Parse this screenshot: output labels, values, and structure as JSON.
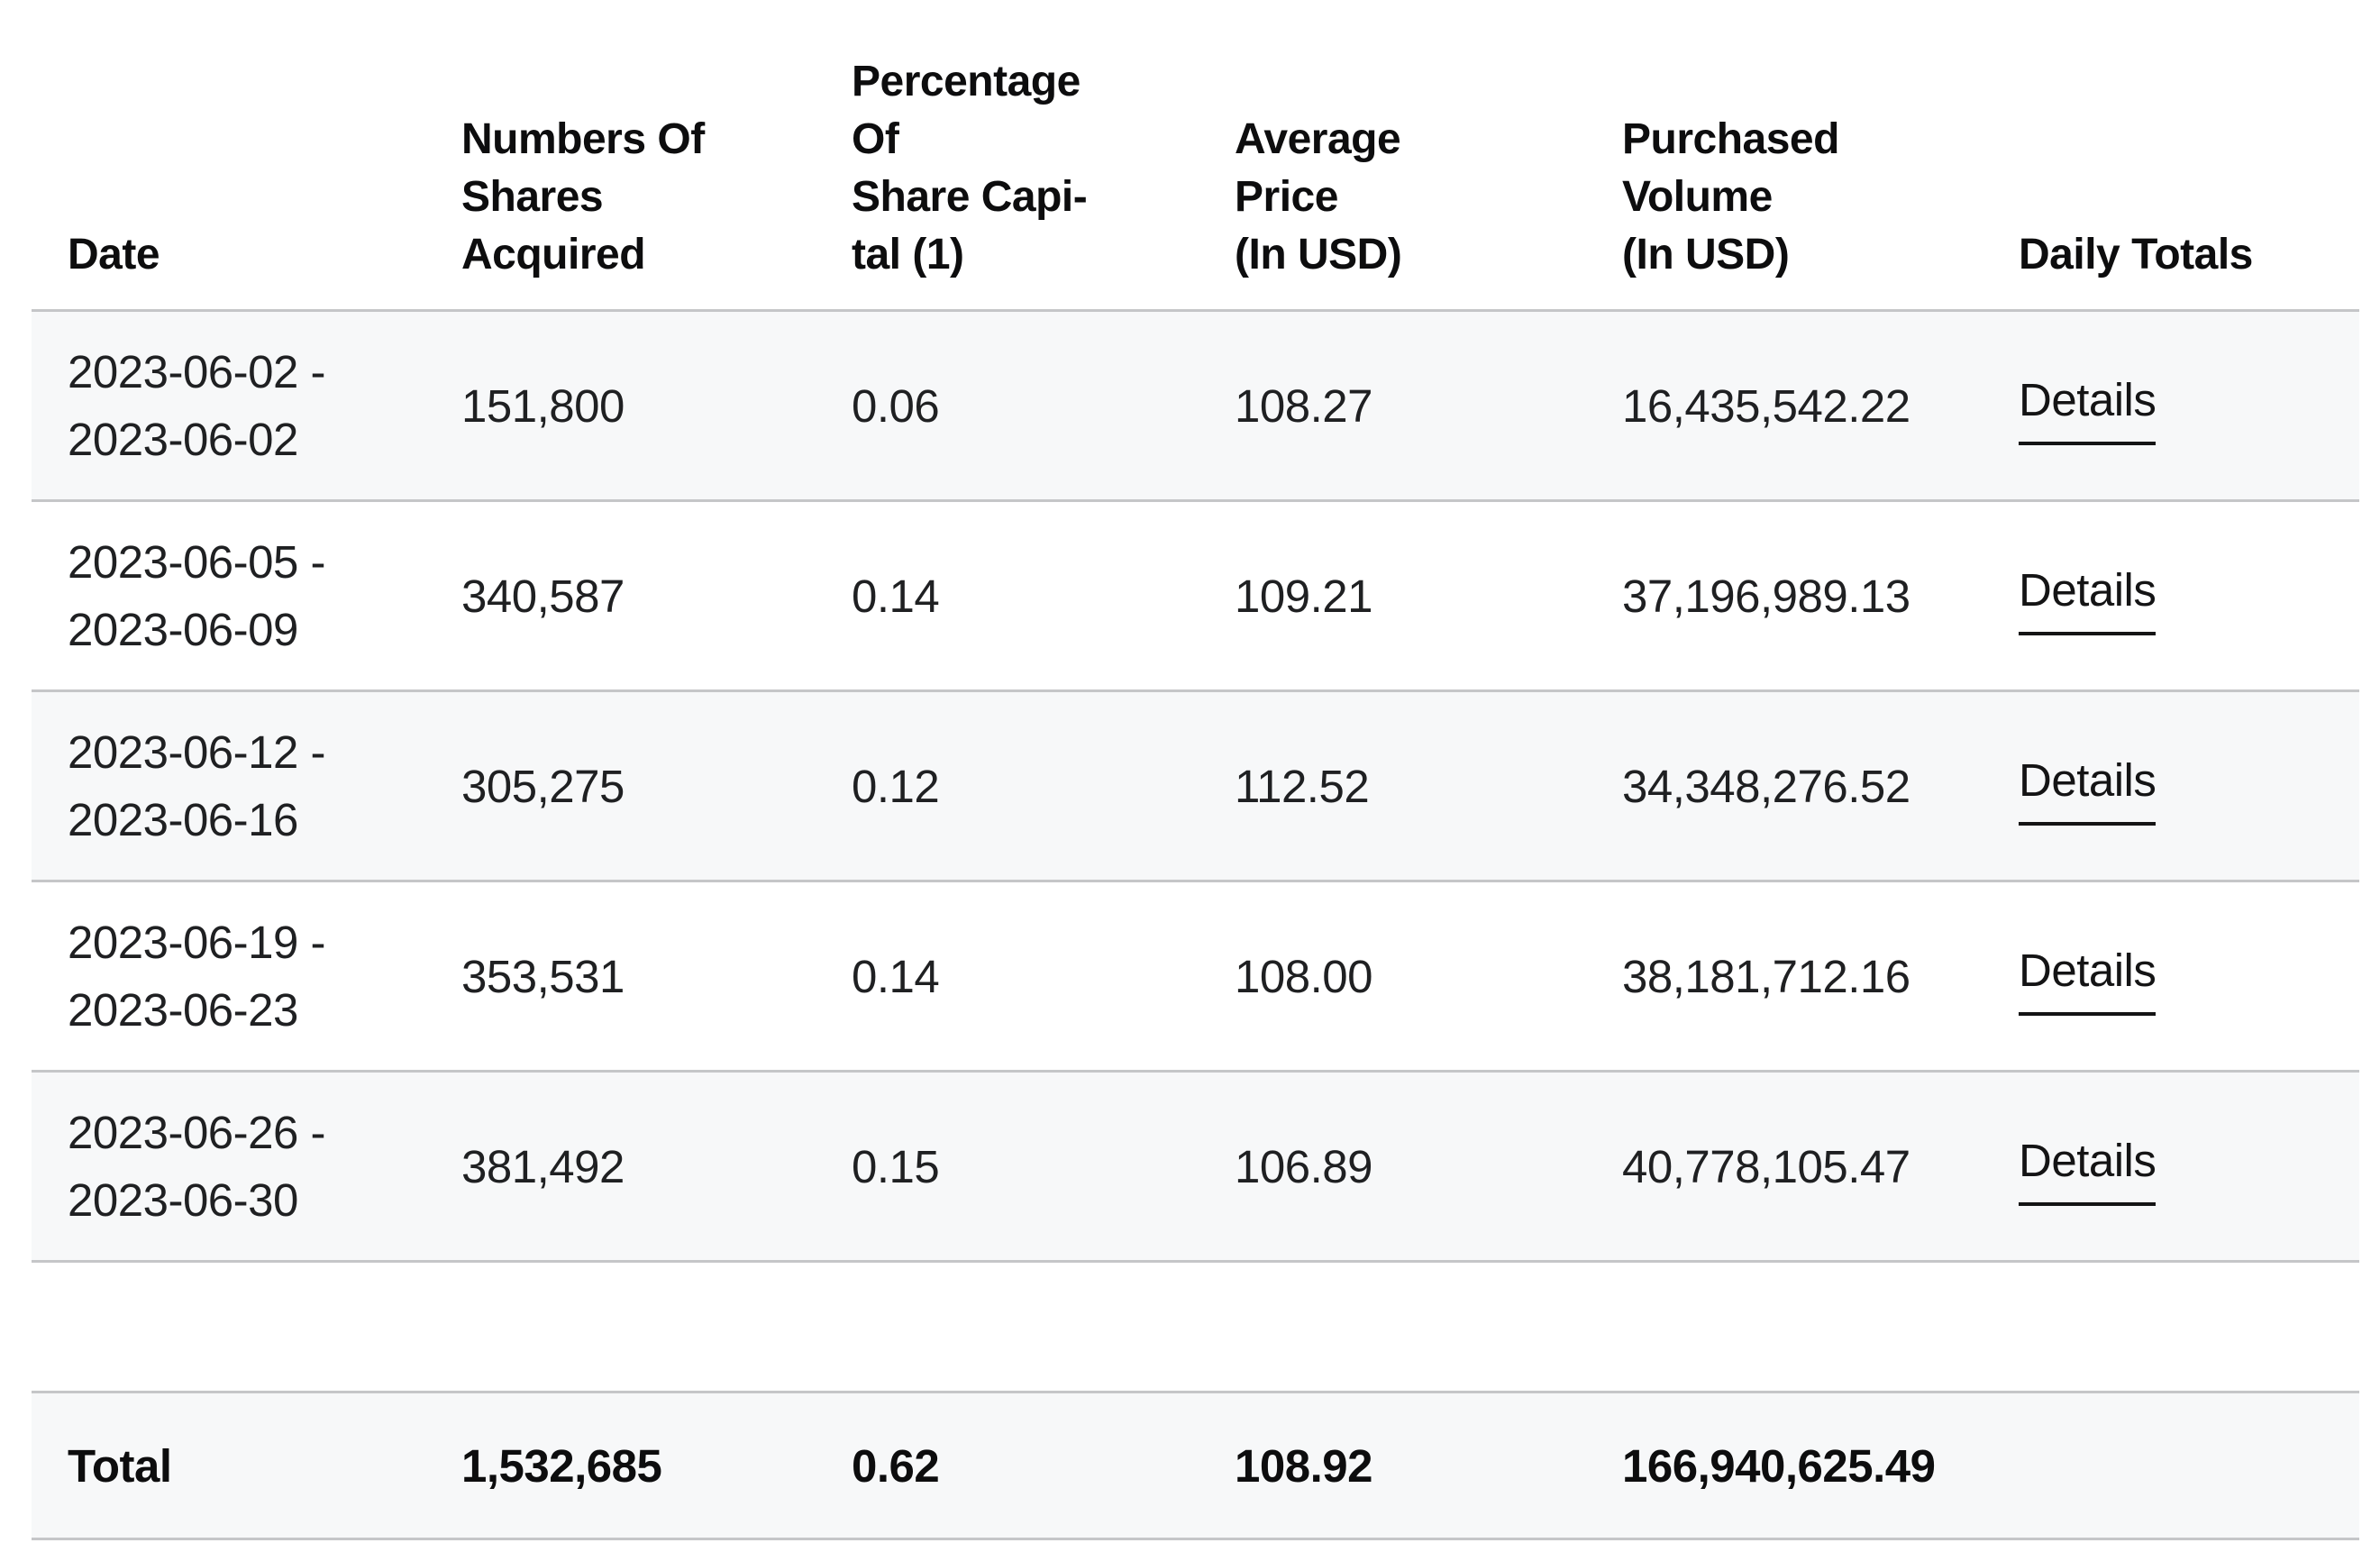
{
  "colors": {
    "stripe": "#f7f8f9",
    "border": "#c5c6c8",
    "header_text": "#0d0d0e",
    "data_text": "#1f2022",
    "link": "#141415"
  },
  "table": {
    "columns": [
      {
        "label": "Date"
      },
      {
        "label": "Numbers Of\nShares\nAcquired"
      },
      {
        "label": "Percentage\nOf\nShare Capi-\ntal (1)"
      },
      {
        "label": "Average\nPrice\n(In USD)"
      },
      {
        "label": "Purchased\nVolume\n(In USD)"
      },
      {
        "label": "Daily Totals"
      }
    ],
    "rows": [
      {
        "date": "2023-06-02 -\n2023-06-02",
        "shares": "151,800",
        "percentage": "0.06",
        "avg_price": "108.27",
        "volume": "16,435,542.22",
        "details_label": "Details"
      },
      {
        "date": "2023-06-05 -\n2023-06-09",
        "shares": "340,587",
        "percentage": "0.14",
        "avg_price": "109.21",
        "volume": "37,196,989.13",
        "details_label": "Details"
      },
      {
        "date": "2023-06-12 -\n2023-06-16",
        "shares": "305,275",
        "percentage": "0.12",
        "avg_price": "112.52",
        "volume": "34,348,276.52",
        "details_label": "Details"
      },
      {
        "date": "2023-06-19 -\n2023-06-23",
        "shares": "353,531",
        "percentage": "0.14",
        "avg_price": "108.00",
        "volume": "38,181,712.16",
        "details_label": "Details"
      },
      {
        "date": "2023-06-26 -\n2023-06-30",
        "shares": "381,492",
        "percentage": "0.15",
        "avg_price": "106.89",
        "volume": "40,778,105.47",
        "details_label": "Details"
      }
    ],
    "total": {
      "label": "Total",
      "shares": "1,532,685",
      "percentage": "0.62",
      "avg_price": "108.92",
      "volume": "166,940,625.49"
    }
  }
}
